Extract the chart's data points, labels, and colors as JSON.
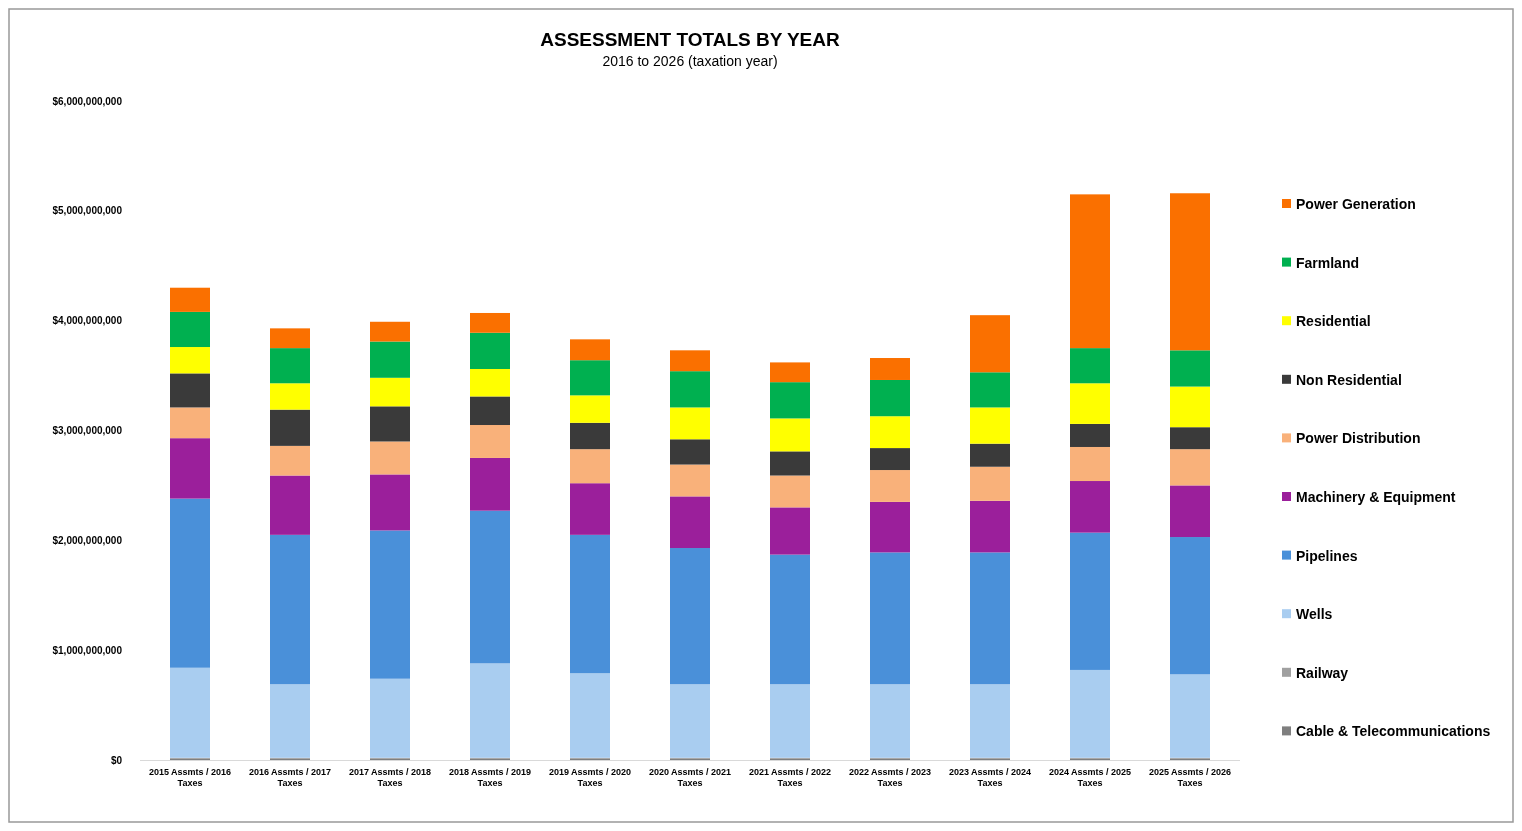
{
  "chart_data": {
    "type": "bar",
    "title": "ASSESSMENT TOTALS BY YEAR",
    "subtitle": "2016 to 2026 (taxation year)",
    "stacked": true,
    "legend": "right",
    "grid": false,
    "categories": [
      "2015 Assmts / 2016 Taxes",
      "2016 Assmts / 2017 Taxes",
      "2017 Assmts / 2018 Taxes",
      "2018 Assmts / 2019 Taxes",
      "2019 Assmts /  2020 Taxes",
      "2020 Assmts / 2021 Taxes",
      "2021 Assmts / 2022 Taxes",
      "2022 Assmts / 2023 Taxes",
      "2023 Assmts / 2024 Taxes",
      "2024 Assmts / 2025 Taxes",
      "2025 Assmts / 2026 Taxes"
    ],
    "ylim": [
      0,
      6000000000
    ],
    "yticks": [
      {
        "value": 0,
        "label": "$0"
      },
      {
        "value": 1000000000,
        "label": "$1,000,000,000"
      },
      {
        "value": 2000000000,
        "label": "$2,000,000,000"
      },
      {
        "value": 3000000000,
        "label": "$3,000,000,000"
      },
      {
        "value": 4000000000,
        "label": "$4,000,000,000"
      },
      {
        "value": 5000000000,
        "label": "$5,000,000,000"
      },
      {
        "value": 6000000000,
        "label": "$6,000,000,000"
      }
    ],
    "series": [
      {
        "name": "Cable & Telecommunications",
        "color": "#7f7f7f",
        "values": [
          10000000,
          10000000,
          10000000,
          10000000,
          10000000,
          10000000,
          10000000,
          10000000,
          10000000,
          10000000,
          10000000
        ]
      },
      {
        "name": "Railway",
        "color": "#a0a0a0",
        "values": [
          10000000,
          10000000,
          10000000,
          10000000,
          10000000,
          10000000,
          10000000,
          10000000,
          10000000,
          10000000,
          10000000
        ]
      },
      {
        "name": "Wells",
        "color": "#a9cdf0",
        "values": [
          820000000,
          670000000,
          720000000,
          860000000,
          770000000,
          670000000,
          670000000,
          670000000,
          670000000,
          800000000,
          760000000
        ]
      },
      {
        "name": "Pipelines",
        "color": "#4a90d9",
        "values": [
          1540000000,
          1360000000,
          1350000000,
          1390000000,
          1260000000,
          1240000000,
          1180000000,
          1200000000,
          1200000000,
          1250000000,
          1250000000
        ]
      },
      {
        "name": "Machinery & Equipment",
        "color": "#9b1f9b",
        "values": [
          550000000,
          540000000,
          510000000,
          480000000,
          470000000,
          470000000,
          430000000,
          460000000,
          470000000,
          470000000,
          470000000
        ]
      },
      {
        "name": "Power Distribution",
        "color": "#f9b17a",
        "values": [
          280000000,
          270000000,
          300000000,
          300000000,
          310000000,
          290000000,
          290000000,
          290000000,
          310000000,
          310000000,
          330000000
        ]
      },
      {
        "name": "Non Residential",
        "color": "#3a3a3a",
        "values": [
          310000000,
          330000000,
          320000000,
          260000000,
          240000000,
          230000000,
          220000000,
          200000000,
          210000000,
          210000000,
          200000000
        ]
      },
      {
        "name": "Residential",
        "color": "#ffff00",
        "values": [
          240000000,
          240000000,
          260000000,
          250000000,
          250000000,
          290000000,
          300000000,
          290000000,
          330000000,
          370000000,
          370000000
        ]
      },
      {
        "name": "Farmland",
        "color": "#00b050",
        "values": [
          320000000,
          320000000,
          330000000,
          330000000,
          320000000,
          330000000,
          330000000,
          330000000,
          320000000,
          320000000,
          330000000
        ]
      },
      {
        "name": "Power Generation",
        "color": "#fa7000",
        "values": [
          220000000,
          180000000,
          180000000,
          180000000,
          190000000,
          190000000,
          180000000,
          200000000,
          520000000,
          1400000000,
          1430000000
        ]
      }
    ]
  }
}
